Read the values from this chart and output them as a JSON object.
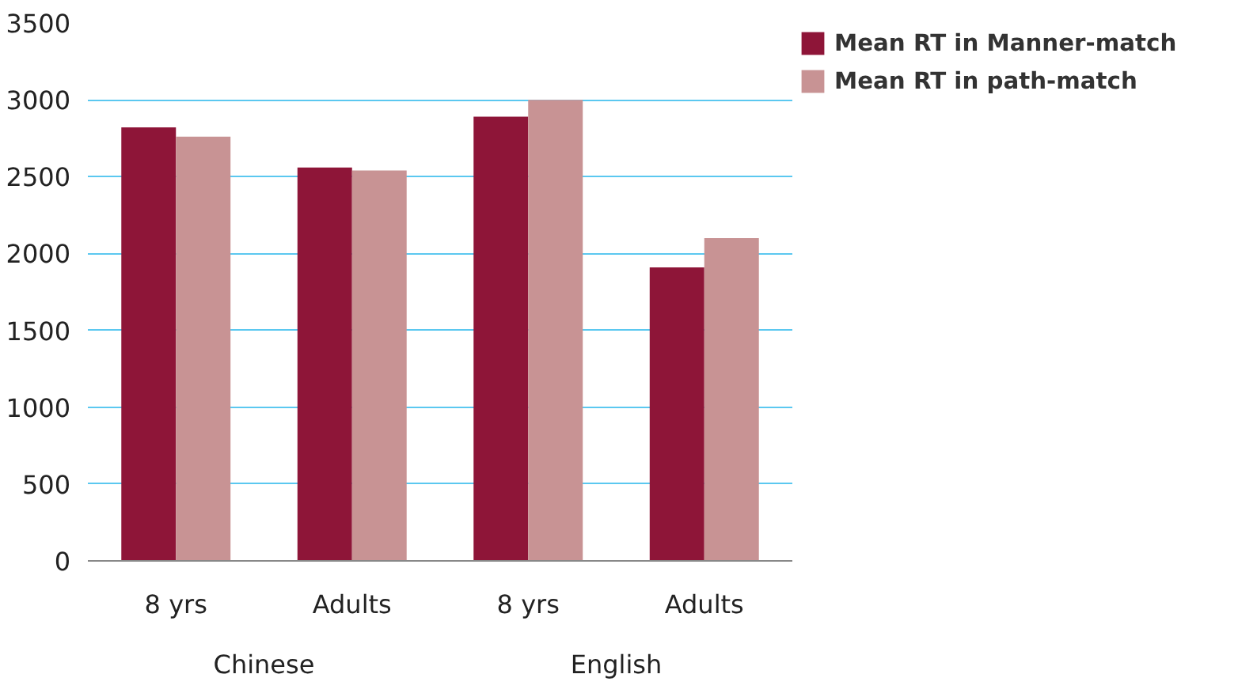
{
  "chart_data": {
    "type": "bar",
    "categories": [
      "8 yrs",
      "Adults",
      "8 yrs",
      "Adults"
    ],
    "annotations": [
      "Chinese",
      "English"
    ],
    "series": [
      {
        "name": "Mean RT in Manner-match",
        "color": "#8e1538",
        "values": [
          2820,
          2560,
          2890,
          1910
        ]
      },
      {
        "name": "Mean RT in path-match",
        "color": "#c89394",
        "values": [
          2760,
          2540,
          3000,
          2100
        ]
      }
    ],
    "ylim": [
      0,
      3500
    ],
    "yticks": [
      0,
      500,
      1000,
      1500,
      2000,
      2500,
      3000,
      3500
    ],
    "grid": "y",
    "legend": "top right"
  }
}
